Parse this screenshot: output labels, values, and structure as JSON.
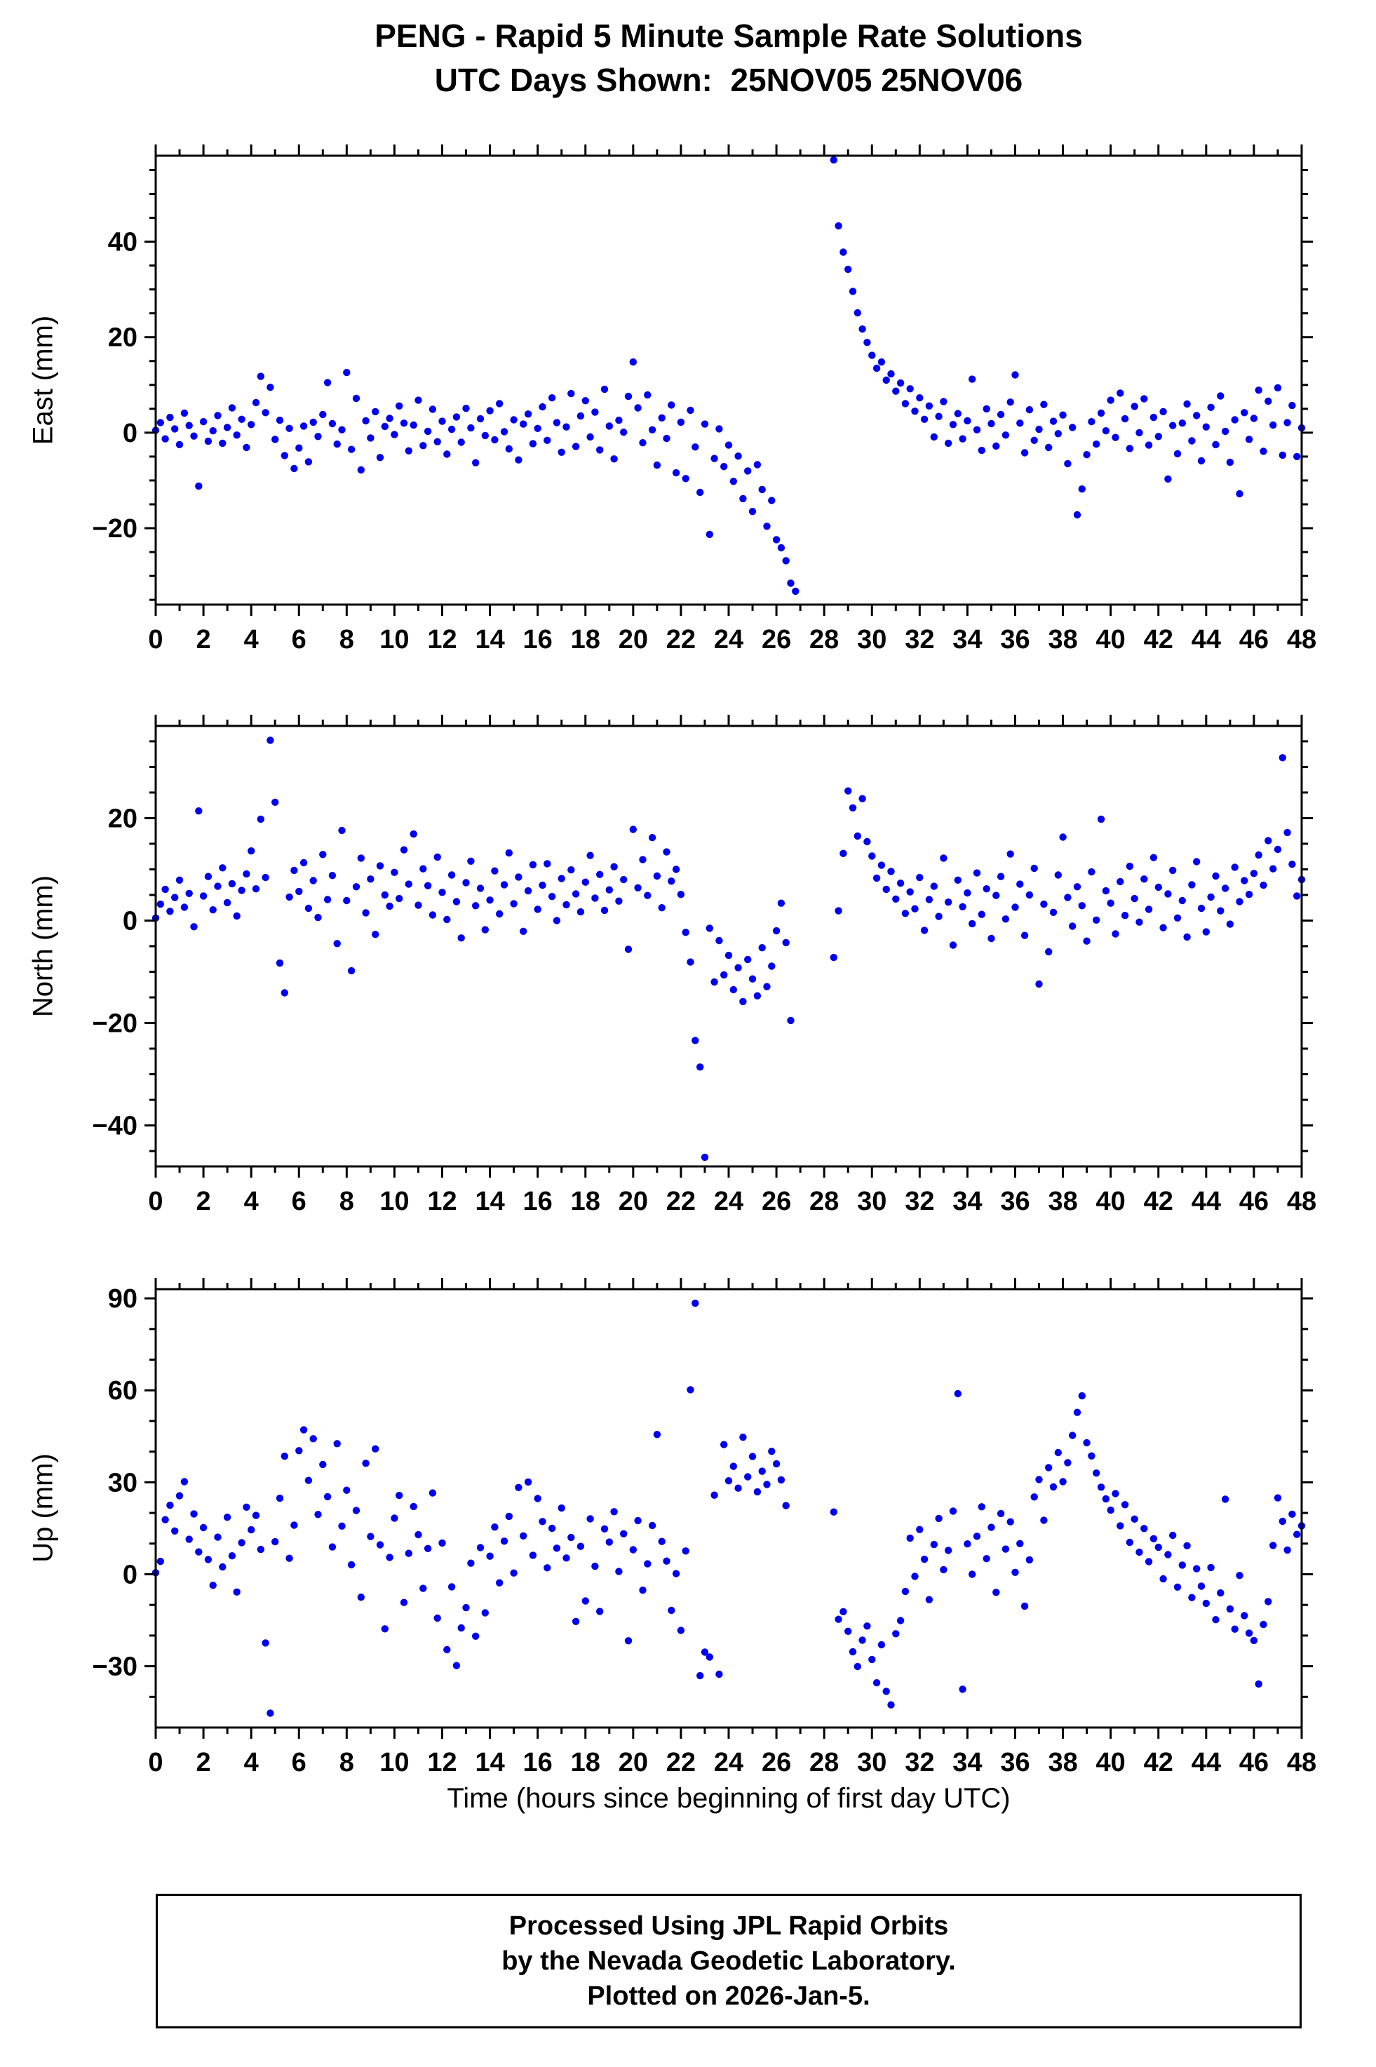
{
  "title": {
    "line1": "PENG - Rapid 5 Minute Sample Rate Solutions",
    "line2": "UTC Days Shown:  25NOV05 25NOV06"
  },
  "footer": {
    "line1": "Processed Using JPL Rapid Orbits",
    "line2": "by the Nevada Geodetic Laboratory.",
    "line3": "Plotted on 2026-Jan-5."
  },
  "chart_data": {
    "type": "scatter",
    "point_color": "#0000ee",
    "axis_color": "#000000",
    "xlabel": "Time (hours since beginning of first day UTC)",
    "x": {
      "start": 0,
      "step": 0.2,
      "count": 241,
      "min": 0,
      "max": 48
    },
    "xticks": [
      0,
      2,
      4,
      6,
      8,
      10,
      12,
      14,
      16,
      18,
      20,
      22,
      24,
      26,
      28,
      30,
      32,
      34,
      36,
      38,
      40,
      42,
      44,
      46,
      48
    ],
    "x_minor_step": 1,
    "panels": [
      {
        "id": "east",
        "ylabel": "East (mm)",
        "ylim": [
          -36,
          58
        ],
        "yticks": [
          -20,
          0,
          20,
          40
        ],
        "y_minor_step": 5,
        "y": [
          0.5,
          2.1,
          -1.3,
          3.2,
          0.8,
          -2.5,
          4.1,
          1.5,
          -0.7,
          -11.2,
          2.3,
          -1.8,
          0.4,
          3.6,
          -2.2,
          1.1,
          5.2,
          -0.5,
          2.8,
          -3.1,
          1.7,
          6.3,
          11.8,
          4.2,
          9.5,
          -1.4,
          2.6,
          -4.8,
          0.9,
          -7.5,
          -3.2,
          1.4,
          -6.1,
          2.2,
          -0.8,
          3.8,
          10.5,
          1.9,
          -2.4,
          0.6,
          12.6,
          -3.5,
          7.2,
          -7.8,
          2.5,
          -1.1,
          4.4,
          -5.2,
          1.3,
          3.0,
          -0.4,
          5.6,
          2.0,
          -3.8,
          1.6,
          6.8,
          -2.7,
          0.3,
          4.9,
          -1.9,
          2.4,
          -4.5,
          0.7,
          3.3,
          -2.0,
          5.1,
          1.0,
          -6.3,
          2.9,
          -0.6,
          4.6,
          -1.5,
          6.1,
          0.2,
          -3.4,
          2.7,
          -5.7,
          1.8,
          3.9,
          -2.3,
          0.9,
          5.4,
          -1.6,
          7.3,
          2.1,
          -4.1,
          1.2,
          8.2,
          -2.9,
          3.5,
          6.7,
          -0.9,
          4.3,
          -3.6,
          9.1,
          1.4,
          -5.5,
          2.6,
          0.1,
          7.6,
          14.8,
          5.2,
          -2.1,
          7.9,
          0.6,
          -6.8,
          3.1,
          -1.2,
          5.8,
          -8.4,
          2.2,
          -9.6,
          4.7,
          -3.0,
          -12.5,
          1.8,
          -21.3,
          -5.4,
          0.8,
          -7.1,
          -2.6,
          -10.2,
          -4.9,
          -13.8,
          -8.0,
          -16.5,
          -6.7,
          -11.9,
          -19.6,
          -14.2,
          -22.4,
          -24.1,
          -26.8,
          -31.5,
          -33.2,
          null,
          null,
          null,
          null,
          null,
          null,
          null,
          57.1,
          43.3,
          37.8,
          34.2,
          29.6,
          25.1,
          21.7,
          18.9,
          16.2,
          13.5,
          14.8,
          11.0,
          12.3,
          8.7,
          10.4,
          6.1,
          9.2,
          4.5,
          7.3,
          2.8,
          5.6,
          -0.9,
          3.4,
          6.5,
          -2.2,
          1.7,
          4.0,
          -1.3,
          2.5,
          11.2,
          0.6,
          -3.7,
          5.0,
          1.9,
          -2.8,
          3.8,
          -0.5,
          6.4,
          12.1,
          2.0,
          -4.2,
          4.8,
          -1.6,
          0.7,
          5.9,
          -3.1,
          2.4,
          -0.2,
          3.7,
          -6.5,
          1.1,
          -17.2,
          -11.8,
          -4.6,
          2.3,
          -2.4,
          4.1,
          0.4,
          6.8,
          -1.0,
          8.3,
          2.9,
          -3.3,
          5.5,
          0.0,
          7.1,
          -2.6,
          3.2,
          -0.8,
          4.4,
          -9.7,
          1.5,
          -4.4,
          2.0,
          6.0,
          -1.7,
          3.6,
          -5.9,
          1.2,
          5.3,
          -2.5,
          7.7,
          0.3,
          -6.2,
          2.7,
          -12.8,
          4.2,
          -1.4,
          3.0,
          8.9,
          -3.9,
          6.6,
          1.6,
          9.4,
          -4.7,
          2.1,
          5.7,
          -5.0,
          1.0
        ]
      },
      {
        "id": "north",
        "ylabel": "North (mm)",
        "ylim": [
          -48,
          38
        ],
        "yticks": [
          -40,
          -20,
          0,
          20
        ],
        "y_minor_step": 5,
        "y": [
          0.5,
          3.2,
          6.1,
          1.8,
          4.5,
          7.9,
          2.6,
          5.3,
          -1.2,
          21.4,
          4.8,
          8.6,
          2.1,
          6.7,
          10.3,
          3.5,
          7.2,
          0.9,
          5.9,
          9.1,
          13.6,
          6.2,
          19.8,
          8.4,
          35.2,
          23.1,
          -8.3,
          -14.1,
          4.6,
          9.8,
          5.7,
          11.3,
          2.4,
          7.8,
          0.6,
          12.9,
          4.1,
          8.8,
          -4.5,
          17.6,
          3.9,
          -9.8,
          6.6,
          12.2,
          1.5,
          8.1,
          -2.7,
          10.7,
          5.0,
          2.8,
          9.4,
          4.3,
          13.8,
          7.1,
          16.9,
          3.0,
          10.1,
          6.8,
          1.1,
          12.4,
          5.5,
          0.2,
          8.9,
          3.7,
          -3.4,
          7.4,
          11.6,
          2.9,
          6.3,
          -1.8,
          4.0,
          9.7,
          1.3,
          7.0,
          13.2,
          3.3,
          8.5,
          -2.1,
          5.8,
          10.9,
          2.2,
          6.9,
          11.1,
          4.7,
          0.0,
          8.2,
          3.1,
          9.9,
          5.2,
          1.7,
          7.5,
          12.7,
          4.4,
          9.0,
          2.0,
          6.0,
          10.5,
          3.8,
          8.0,
          -5.6,
          17.8,
          6.4,
          11.9,
          4.9,
          16.2,
          8.7,
          2.5,
          13.4,
          7.7,
          10.0,
          5.1,
          -2.3,
          -8.1,
          -23.4,
          -28.6,
          -46.2,
          -1.5,
          -12.0,
          -3.9,
          -10.6,
          -6.8,
          -13.5,
          -9.2,
          -15.8,
          -7.6,
          -11.4,
          -14.7,
          -5.3,
          -12.9,
          -8.9,
          -2.0,
          3.4,
          -4.3,
          -19.5,
          null,
          null,
          null,
          null,
          null,
          null,
          null,
          null,
          -7.2,
          1.9,
          13.1,
          25.3,
          22.0,
          16.5,
          23.8,
          15.4,
          12.6,
          8.3,
          10.8,
          6.1,
          9.6,
          4.2,
          7.3,
          1.4,
          5.6,
          2.3,
          8.4,
          -1.9,
          4.1,
          6.7,
          0.8,
          12.2,
          3.6,
          -4.8,
          7.9,
          2.7,
          5.4,
          -0.6,
          9.3,
          1.2,
          6.2,
          -3.5,
          4.9,
          8.6,
          0.3,
          13.0,
          2.6,
          7.1,
          -2.9,
          5.0,
          10.2,
          -12.4,
          3.2,
          -6.1,
          1.6,
          8.9,
          16.3,
          4.5,
          -1.1,
          6.6,
          2.9,
          -4.0,
          9.5,
          0.1,
          19.8,
          5.8,
          3.4,
          -2.6,
          7.6,
          1.0,
          10.6,
          4.3,
          -0.3,
          8.1,
          2.2,
          12.3,
          6.5,
          -1.4,
          5.2,
          9.8,
          0.5,
          3.9,
          -3.2,
          7.0,
          11.5,
          2.4,
          -2.2,
          4.6,
          8.7,
          1.9,
          6.3,
          -0.7,
          10.4,
          3.7,
          7.8,
          5.1,
          9.2,
          12.8,
          6.9,
          15.6,
          10.1,
          13.9,
          31.8,
          17.2,
          11.0,
          4.8,
          8.0
        ]
      },
      {
        "id": "up",
        "ylabel": "Up (mm)",
        "ylim": [
          -50,
          93
        ],
        "yticks": [
          -30,
          0,
          30,
          60,
          90
        ],
        "y_minor_step": 10,
        "y": [
          0.5,
          4.2,
          17.8,
          22.5,
          14.1,
          25.6,
          30.2,
          11.4,
          19.7,
          7.3,
          15.2,
          4.8,
          -3.6,
          12.1,
          2.4,
          18.6,
          6.0,
          -5.8,
          10.3,
          21.9,
          14.5,
          19.2,
          8.1,
          -22.4,
          -45.3,
          10.6,
          24.8,
          38.5,
          5.2,
          16.0,
          40.3,
          47.1,
          30.6,
          44.2,
          19.5,
          35.8,
          25.3,
          8.9,
          42.6,
          15.7,
          27.4,
          3.1,
          20.8,
          -7.5,
          36.2,
          12.3,
          40.9,
          9.6,
          -17.8,
          5.5,
          18.3,
          25.7,
          -9.2,
          6.8,
          22.1,
          12.9,
          -4.6,
          8.4,
          26.5,
          -14.3,
          10.2,
          -24.6,
          -4.1,
          -29.8,
          -17.5,
          -10.9,
          3.6,
          -20.2,
          8.7,
          -12.6,
          5.9,
          15.4,
          -2.8,
          10.8,
          18.9,
          0.4,
          28.3,
          12.5,
          30.1,
          6.2,
          24.7,
          17.2,
          2.1,
          15.0,
          8.5,
          21.6,
          5.3,
          12.0,
          -15.4,
          9.1,
          -8.7,
          18.1,
          2.6,
          -12.1,
          14.8,
          10.5,
          20.4,
          0.9,
          13.2,
          -21.7,
          8.0,
          17.5,
          -5.2,
          3.4,
          15.9,
          45.6,
          10.7,
          4.3,
          -11.8,
          0.2,
          -18.3,
          7.6,
          60.2,
          88.4,
          -33.1,
          -25.4,
          -27.0,
          25.8,
          -32.6,
          42.3,
          30.5,
          35.2,
          28.1,
          44.7,
          31.8,
          38.4,
          26.9,
          33.6,
          29.3,
          40.1,
          36.0,
          30.8,
          22.4,
          null,
          null,
          null,
          null,
          null,
          null,
          null,
          null,
          null,
          20.3,
          -14.7,
          -12.2,
          -18.6,
          -25.3,
          -30.1,
          -21.5,
          -16.9,
          -27.8,
          -35.4,
          -23.0,
          -38.2,
          -42.6,
          -19.4,
          -15.1,
          -5.6,
          11.8,
          -0.7,
          14.6,
          4.9,
          -8.3,
          9.7,
          18.2,
          1.5,
          7.8,
          20.6,
          58.9,
          -37.5,
          9.9,
          0.0,
          12.4,
          22.0,
          5.1,
          15.3,
          -5.9,
          19.8,
          8.2,
          17.1,
          0.6,
          10.0,
          -10.4,
          4.7,
          25.2,
          30.9,
          17.6,
          34.8,
          28.5,
          39.7,
          30.2,
          36.4,
          45.3,
          52.8,
          58.2,
          42.9,
          38.6,
          33.0,
          28.4,
          24.6,
          20.9,
          26.3,
          15.8,
          22.7,
          10.4,
          18.0,
          7.2,
          14.9,
          4.1,
          11.6,
          8.8,
          -1.5,
          6.4,
          12.7,
          -4.2,
          3.0,
          9.3,
          -7.6,
          1.8,
          -3.9,
          -9.5,
          2.2,
          -14.8,
          -6.1,
          24.5,
          -11.3,
          -17.9,
          -0.4,
          -13.5,
          -19.2,
          -21.6,
          -35.8,
          -16.4,
          -8.9,
          9.4,
          24.9,
          17.3,
          7.9,
          19.6,
          13.0,
          15.8
        ]
      }
    ]
  }
}
